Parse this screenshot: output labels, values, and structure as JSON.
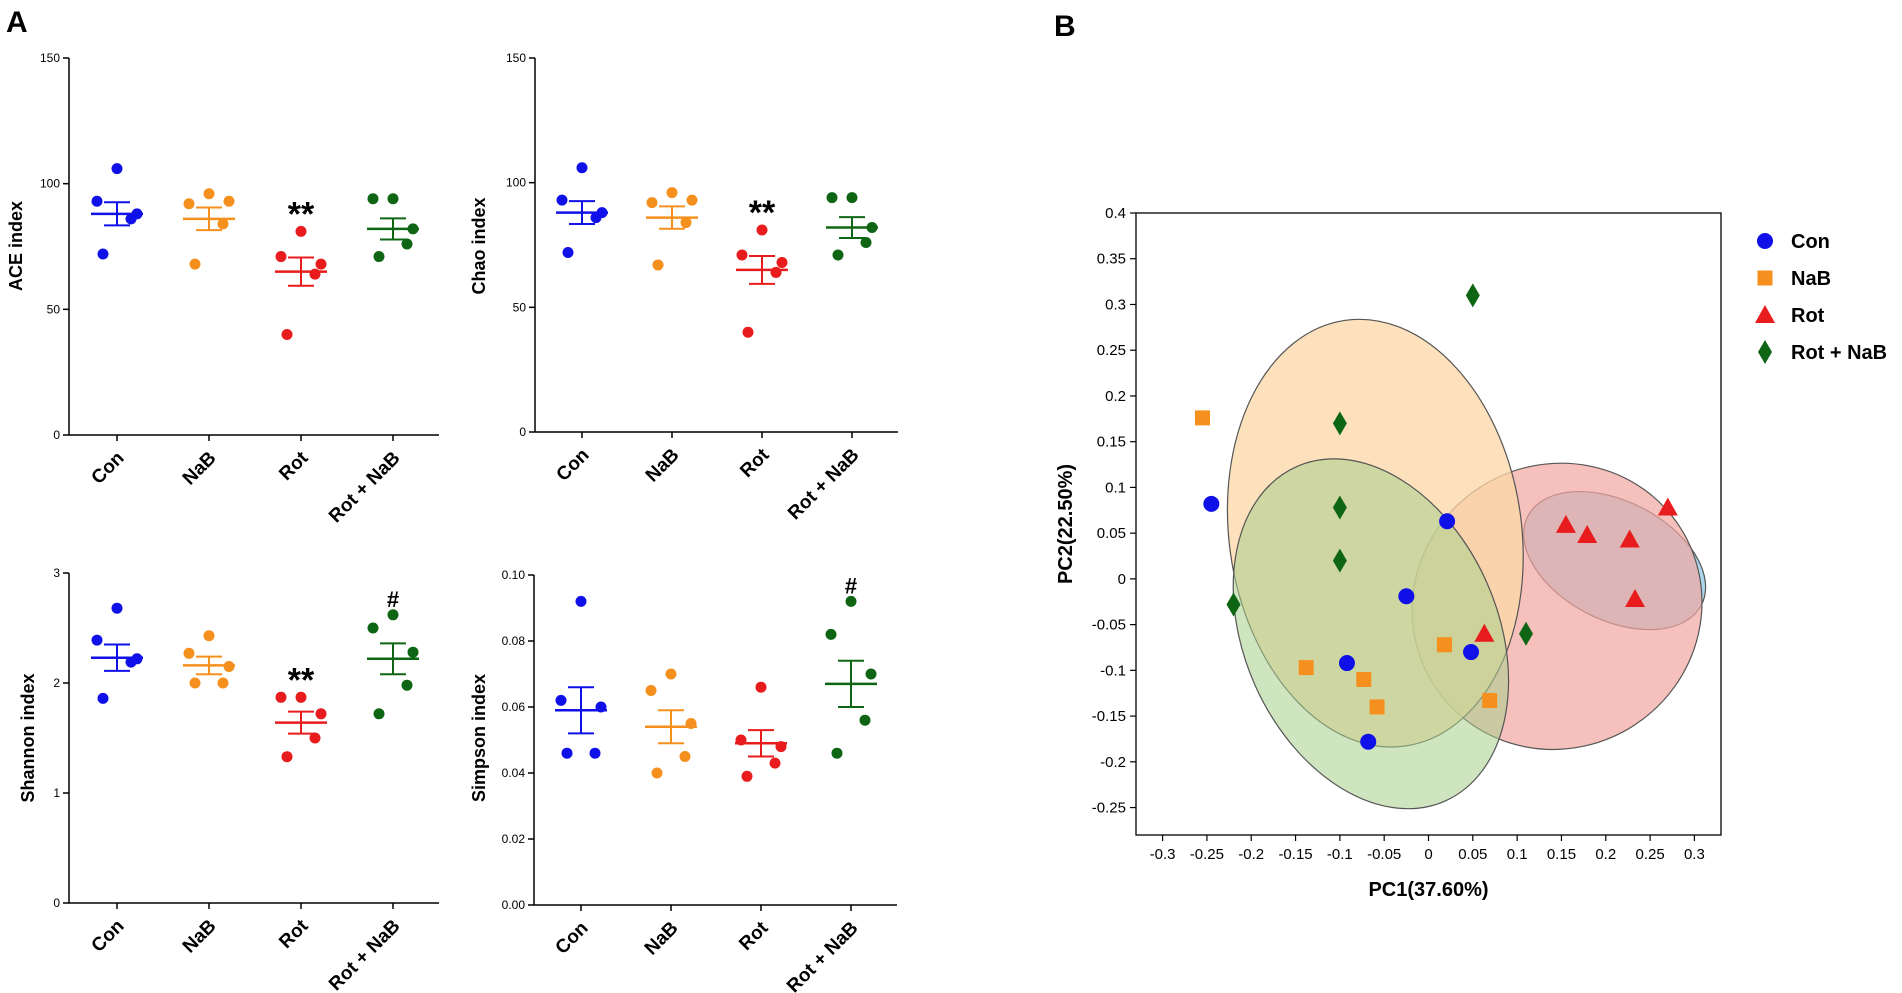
{
  "figure": {
    "panel_a_label": "A",
    "panel_b_label": "B"
  },
  "colors": {
    "Con": "#1010e8",
    "NaB": "#f5901e",
    "Rot": "#e81c1c",
    "Rot + NaB": "#0e6614"
  },
  "chart_data": [
    {
      "type": "scatter",
      "id": "ace",
      "ylabel": "ACE index",
      "categories": [
        "Con",
        "NaB",
        "Rot",
        "Rot + NaB"
      ],
      "ylim": [
        0,
        150
      ],
      "yticks": [
        0,
        50,
        100,
        150
      ],
      "tick_labels": [
        "0",
        "50",
        "100",
        "150"
      ],
      "points": [
        [
          106,
          93,
          88,
          86,
          72
        ],
        [
          96,
          92,
          93,
          84,
          68
        ],
        [
          81,
          71,
          68,
          64,
          40
        ],
        [
          94,
          94,
          82,
          76,
          71
        ]
      ],
      "means": [
        88,
        86,
        65,
        82
      ],
      "sem": [
        4.6,
        4.5,
        5.6,
        4.2
      ],
      "significance": [
        "",
        "",
        "**",
        ""
      ]
    },
    {
      "type": "scatter",
      "id": "chao",
      "ylabel": "Chao index",
      "categories": [
        "Con",
        "NaB",
        "Rot",
        "Rot + NaB"
      ],
      "ylim": [
        0,
        150
      ],
      "yticks": [
        0,
        50,
        100,
        150
      ],
      "tick_labels": [
        "0",
        "50",
        "100",
        "150"
      ],
      "points": [
        [
          106,
          93,
          88,
          86,
          72
        ],
        [
          96,
          92,
          93,
          84,
          67
        ],
        [
          81,
          71,
          68,
          64,
          40
        ],
        [
          94,
          94,
          82,
          76,
          71
        ]
      ],
      "means": [
        88,
        86,
        65,
        82
      ],
      "sem": [
        4.6,
        4.5,
        5.6,
        4.2
      ],
      "significance": [
        "",
        "",
        "**",
        ""
      ]
    },
    {
      "type": "scatter",
      "id": "shannon",
      "ylabel": "Shannon index",
      "categories": [
        "Con",
        "NaB",
        "Rot",
        "Rot + NaB"
      ],
      "ylim": [
        0,
        3
      ],
      "yticks": [
        0,
        1,
        2,
        3
      ],
      "tick_labels": [
        "0",
        "1",
        "2",
        "3"
      ],
      "points": [
        [
          2.68,
          2.39,
          2.22,
          2.19,
          1.86
        ],
        [
          2.43,
          2.27,
          2.15,
          2.0,
          2.0
        ],
        [
          1.87,
          1.87,
          1.72,
          1.5,
          1.33
        ],
        [
          2.62,
          2.5,
          2.28,
          1.98,
          1.72
        ]
      ],
      "means": [
        2.23,
        2.16,
        1.64,
        2.22
      ],
      "sem": [
        0.12,
        0.08,
        0.1,
        0.14
      ],
      "significance": [
        "",
        "",
        "**",
        "#"
      ]
    },
    {
      "type": "scatter",
      "id": "simpson",
      "ylabel": "Simpson index",
      "categories": [
        "Con",
        "NaB",
        "Rot",
        "Rot + NaB"
      ],
      "ylim": [
        0,
        0.1
      ],
      "yticks": [
        0,
        0.02,
        0.04,
        0.06,
        0.08,
        0.1
      ],
      "tick_labels": [
        "0.00",
        "0.02",
        "0.04",
        "0.06",
        "0.08",
        "0.10"
      ],
      "points": [
        [
          0.092,
          0.062,
          0.06,
          0.046,
          0.046
        ],
        [
          0.07,
          0.065,
          0.055,
          0.045,
          0.04
        ],
        [
          0.066,
          0.05,
          0.048,
          0.043,
          0.039
        ],
        [
          0.092,
          0.082,
          0.07,
          0.056,
          0.046
        ]
      ],
      "means": [
        0.059,
        0.054,
        0.049,
        0.067
      ],
      "sem": [
        0.007,
        0.005,
        0.004,
        0.007
      ],
      "significance": [
        "",
        "",
        "",
        "#"
      ]
    },
    {
      "type": "scatter",
      "id": "pca",
      "xlabel": "PC1(37.60%)",
      "ylabel": "PC2(22.50%)",
      "xlim": [
        -0.33,
        0.33
      ],
      "ylim": [
        -0.28,
        0.4
      ],
      "xticks": [
        -0.3,
        -0.25,
        -0.2,
        -0.15,
        -0.1,
        -0.05,
        0,
        0.05,
        0.1,
        0.15,
        0.2,
        0.25,
        0.3
      ],
      "xtick_labels": [
        "-0.3",
        "-0.25",
        "-0.2",
        "-0.15",
        "-0.1",
        "-0.05",
        "0",
        "0.05",
        "0.1",
        "0.15",
        "0.2",
        "0.25",
        "0.3"
      ],
      "yticks": [
        -0.25,
        -0.2,
        -0.15,
        -0.1,
        -0.05,
        0,
        0.05,
        0.1,
        0.15,
        0.2,
        0.25,
        0.3,
        0.35,
        0.4
      ],
      "ytick_labels": [
        "-0.25",
        "-0.2",
        "-0.15",
        "-0.1",
        "-0.05",
        "0",
        "0.05",
        "0.1",
        "0.15",
        "0.2",
        "0.25",
        "0.3",
        "0.35",
        "0.4"
      ],
      "series": [
        {
          "name": "Con",
          "marker": "circle",
          "x": [
            -0.245,
            0.021,
            -0.025,
            -0.092,
            0.048,
            -0.068
          ],
          "y": [
            0.082,
            0.063,
            -0.019,
            -0.092,
            -0.08,
            -0.178
          ],
          "ellipse": {
            "cx": -0.065,
            "cy": -0.06,
            "rx": 0.143,
            "ry": 0.2,
            "angle": 24,
            "fill": "#a8d08d",
            "opacity": 0.55
          }
        },
        {
          "name": "NaB",
          "marker": "square",
          "x": [
            -0.255,
            -0.138,
            -0.073,
            -0.058,
            0.018,
            0.069
          ],
          "y": [
            0.176,
            -0.097,
            -0.11,
            -0.14,
            -0.072,
            -0.133
          ],
          "ellipse": {
            "cx": -0.06,
            "cy": 0.05,
            "rx": 0.165,
            "ry": 0.235,
            "angle": 8,
            "fill": "#fbd7a6",
            "opacity": 0.75
          }
        },
        {
          "name": "Rot",
          "marker": "triangle",
          "x": [
            0.155,
            0.179,
            0.227,
            0.27,
            0.233,
            0.063
          ],
          "y": [
            0.059,
            0.048,
            0.043,
            0.078,
            -0.022,
            -0.06
          ],
          "ellipse": {
            "cx": 0.145,
            "cy": -0.03,
            "rx": 0.165,
            "ry": 0.155,
            "angle": 33,
            "fill": "#f2a7a0",
            "opacity": 0.7
          }
        },
        {
          "name": "Rot + NaB",
          "marker": "diamond",
          "x": [
            0.05,
            -0.1,
            -0.1,
            -0.1,
            -0.22,
            0.11
          ],
          "y": [
            0.31,
            0.17,
            0.078,
            0.02,
            -0.028,
            -0.06
          ],
          "ellipse": {
            "cx": 0.21,
            "cy": 0.02,
            "rx": 0.11,
            "ry": 0.065,
            "angle": -27,
            "fill": "#a3d3ea",
            "opacity": 0.9
          }
        }
      ],
      "legend": [
        "Con",
        "NaB",
        "Rot",
        "Rot + NaB"
      ]
    }
  ]
}
